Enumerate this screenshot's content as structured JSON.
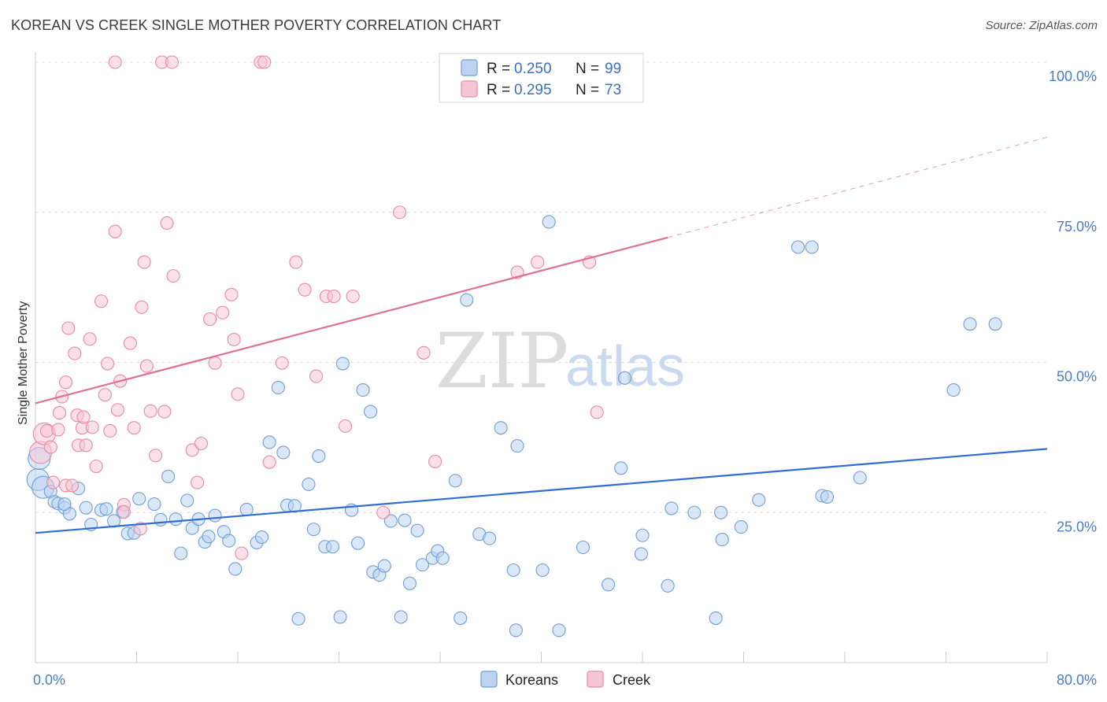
{
  "title": "KOREAN VS CREEK SINGLE MOTHER POVERTY CORRELATION CHART",
  "source": "Source: ZipAtlas.com",
  "watermark": {
    "zip": "ZIP",
    "atlas": "atlas"
  },
  "legend": {
    "rows": [
      {
        "r_label": "R =",
        "r_value": "0.250",
        "n_label": "N =",
        "n_value": "99"
      },
      {
        "r_label": "R =",
        "r_value": "0.295",
        "n_label": "N =",
        "n_value": "73"
      }
    ]
  },
  "bottom_legend": {
    "koreans": "Koreans",
    "creek": "Creek"
  },
  "chart_data": {
    "type": "scatter",
    "title": "KOREAN VS CREEK SINGLE MOTHER POVERTY CORRELATION CHART",
    "xlabel": "",
    "ylabel": "Single Mother Poverty",
    "xlim": [
      0,
      80
    ],
    "ylim": [
      0,
      100
    ],
    "x_tick_labels": [
      "0.0%",
      "80.0%"
    ],
    "y_tick_labels": [
      "25.0%",
      "50.0%",
      "75.0%",
      "100.0%"
    ],
    "y_ticks": [
      25,
      50,
      75,
      100
    ],
    "grid": true,
    "legend_position": "top-center",
    "colors": {
      "koreans": "#6f9fd8",
      "koreans_fill": "#bcd3f1",
      "koreans_line": "#2f6fcf",
      "creek": "#e98aa8",
      "creek_fill": "#f6c6d5",
      "creek_line": "#e07093"
    },
    "series": [
      {
        "name": "Koreans",
        "trend": {
          "x0": 0,
          "y0": 21.6,
          "x1": 80,
          "y1": 35.6
        },
        "points": [
          [
            0.2,
            30.5
          ],
          [
            0.3,
            34
          ],
          [
            0.6,
            29.2
          ],
          [
            1.2,
            28.5
          ],
          [
            1.5,
            26.8
          ],
          [
            1.8,
            26.5
          ],
          [
            2.3,
            25.8
          ],
          [
            2.7,
            24.8
          ],
          [
            3.4,
            29
          ],
          [
            4,
            25.8
          ],
          [
            4.4,
            23
          ],
          [
            5.2,
            25.4
          ],
          [
            5.6,
            25.6
          ],
          [
            6.2,
            23.6
          ],
          [
            6.9,
            25.1
          ],
          [
            7.3,
            21.5
          ],
          [
            7.8,
            21.6
          ],
          [
            8.2,
            27.3
          ],
          [
            9.4,
            26.4
          ],
          [
            9.9,
            23.8
          ],
          [
            10.5,
            31
          ],
          [
            11.1,
            23.9
          ],
          [
            11.5,
            18.2
          ],
          [
            12,
            27
          ],
          [
            12.4,
            22.4
          ],
          [
            12.9,
            23.9
          ],
          [
            13.4,
            20.1
          ],
          [
            13.7,
            21
          ],
          [
            14.2,
            24.5
          ],
          [
            14.9,
            21.8
          ],
          [
            15.3,
            20.3
          ],
          [
            15.8,
            15.6
          ],
          [
            16.7,
            25.5
          ],
          [
            17.5,
            20
          ],
          [
            17.9,
            20.9
          ],
          [
            18.5,
            36.7
          ],
          [
            19.2,
            45.8
          ],
          [
            19.6,
            35
          ],
          [
            19.9,
            26.2
          ],
          [
            20.5,
            26.1
          ],
          [
            20.8,
            7.3
          ],
          [
            21.6,
            29.7
          ],
          [
            22,
            22.2
          ],
          [
            22.4,
            34.4
          ],
          [
            22.9,
            19.3
          ],
          [
            23.5,
            19.3
          ],
          [
            24.1,
            7.6
          ],
          [
            24.3,
            49.8
          ],
          [
            25,
            25.4
          ],
          [
            25.5,
            19.9
          ],
          [
            25.9,
            45.4
          ],
          [
            26.5,
            41.8
          ],
          [
            26.7,
            15.1
          ],
          [
            27.2,
            14.6
          ],
          [
            27.6,
            16.1
          ],
          [
            28.1,
            23.6
          ],
          [
            28.9,
            7.6
          ],
          [
            29.2,
            23.7
          ],
          [
            29.6,
            13.2
          ],
          [
            30.2,
            22
          ],
          [
            30.6,
            16.3
          ],
          [
            31.4,
            17.4
          ],
          [
            31.8,
            18.6
          ],
          [
            32.2,
            17.4
          ],
          [
            33.2,
            30.3
          ],
          [
            33.6,
            7.4
          ],
          [
            34.1,
            60.4
          ],
          [
            35.1,
            21.4
          ],
          [
            35.9,
            20.7
          ],
          [
            36.8,
            39.1
          ],
          [
            37.8,
            15.4
          ],
          [
            38,
            5.4
          ],
          [
            38.1,
            36.1
          ],
          [
            40.1,
            15.4
          ],
          [
            40.6,
            73.4
          ],
          [
            41.4,
            5.4
          ],
          [
            43.3,
            19.2
          ],
          [
            45.3,
            13
          ],
          [
            46.3,
            32.4
          ],
          [
            46.6,
            47.4
          ],
          [
            47.9,
            18.1
          ],
          [
            48,
            21.2
          ],
          [
            50,
            12.8
          ],
          [
            50.3,
            25.7
          ],
          [
            52.1,
            25
          ],
          [
            53.8,
            7.4
          ],
          [
            54.2,
            25
          ],
          [
            54.3,
            20.5
          ],
          [
            55.8,
            22.6
          ],
          [
            57.2,
            27.1
          ],
          [
            60.3,
            69.2
          ],
          [
            61.4,
            69.2
          ],
          [
            62.2,
            27.8
          ],
          [
            62.6,
            27.6
          ],
          [
            65.2,
            30.8
          ],
          [
            72.6,
            45.4
          ],
          [
            73.9,
            56.4
          ],
          [
            75.9,
            56.4
          ],
          [
            2.3,
            26.4
          ]
        ]
      },
      {
        "name": "Creek",
        "trend": {
          "x0": 0,
          "y0": 43.2,
          "x1": 50,
          "y1": 70.8,
          "dash_x1": 80,
          "dash_y1": 87.5
        },
        "points": [
          [
            0.4,
            35
          ],
          [
            0.7,
            38.1
          ],
          [
            0.9,
            38.6
          ],
          [
            1.2,
            35.9
          ],
          [
            1.4,
            30
          ],
          [
            1.8,
            38.8
          ],
          [
            1.9,
            41.6
          ],
          [
            2.1,
            44.3
          ],
          [
            2.4,
            29.5
          ],
          [
            2.4,
            46.7
          ],
          [
            2.6,
            55.7
          ],
          [
            2.9,
            29.5
          ],
          [
            3.1,
            51.5
          ],
          [
            3.3,
            41.2
          ],
          [
            3.4,
            36.2
          ],
          [
            3.7,
            39.1
          ],
          [
            3.8,
            40.9
          ],
          [
            4,
            36.2
          ],
          [
            4.3,
            53.9
          ],
          [
            4.5,
            39.2
          ],
          [
            4.8,
            32.7
          ],
          [
            5.2,
            60.2
          ],
          [
            5.5,
            44.6
          ],
          [
            5.7,
            49.8
          ],
          [
            5.9,
            38.6
          ],
          [
            6.3,
            100
          ],
          [
            6.3,
            71.8
          ],
          [
            6.5,
            42.1
          ],
          [
            6.7,
            46.9
          ],
          [
            7,
            26.3
          ],
          [
            7,
            25.1
          ],
          [
            7.5,
            53.2
          ],
          [
            7.8,
            39.1
          ],
          [
            8.3,
            22.3
          ],
          [
            8.4,
            59.2
          ],
          [
            8.6,
            66.7
          ],
          [
            8.8,
            49.4
          ],
          [
            9.1,
            41.9
          ],
          [
            9.5,
            34.5
          ],
          [
            10,
            100
          ],
          [
            10.2,
            41.8
          ],
          [
            10.4,
            73.2
          ],
          [
            10.8,
            100
          ],
          [
            10.9,
            64.4
          ],
          [
            12.4,
            35.4
          ],
          [
            12.8,
            30
          ],
          [
            13.1,
            36.5
          ],
          [
            13.8,
            57.2
          ],
          [
            14.2,
            49.9
          ],
          [
            14.8,
            58.3
          ],
          [
            15.5,
            61.3
          ],
          [
            15.7,
            53.8
          ],
          [
            16,
            44.7
          ],
          [
            16.3,
            18.2
          ],
          [
            17.8,
            100
          ],
          [
            18.1,
            100
          ],
          [
            18.5,
            33.4
          ],
          [
            19.5,
            49.9
          ],
          [
            20.6,
            66.7
          ],
          [
            21.3,
            62.1
          ],
          [
            22.2,
            47.7
          ],
          [
            23,
            61
          ],
          [
            23.6,
            61
          ],
          [
            24.5,
            39.4
          ],
          [
            25.1,
            61
          ],
          [
            27.5,
            25
          ],
          [
            28.8,
            75
          ],
          [
            30.7,
            51.6
          ],
          [
            31.6,
            33.5
          ],
          [
            38.1,
            65
          ],
          [
            39.7,
            66.7
          ],
          [
            43.8,
            66.7
          ],
          [
            44.4,
            41.7
          ]
        ]
      }
    ]
  }
}
